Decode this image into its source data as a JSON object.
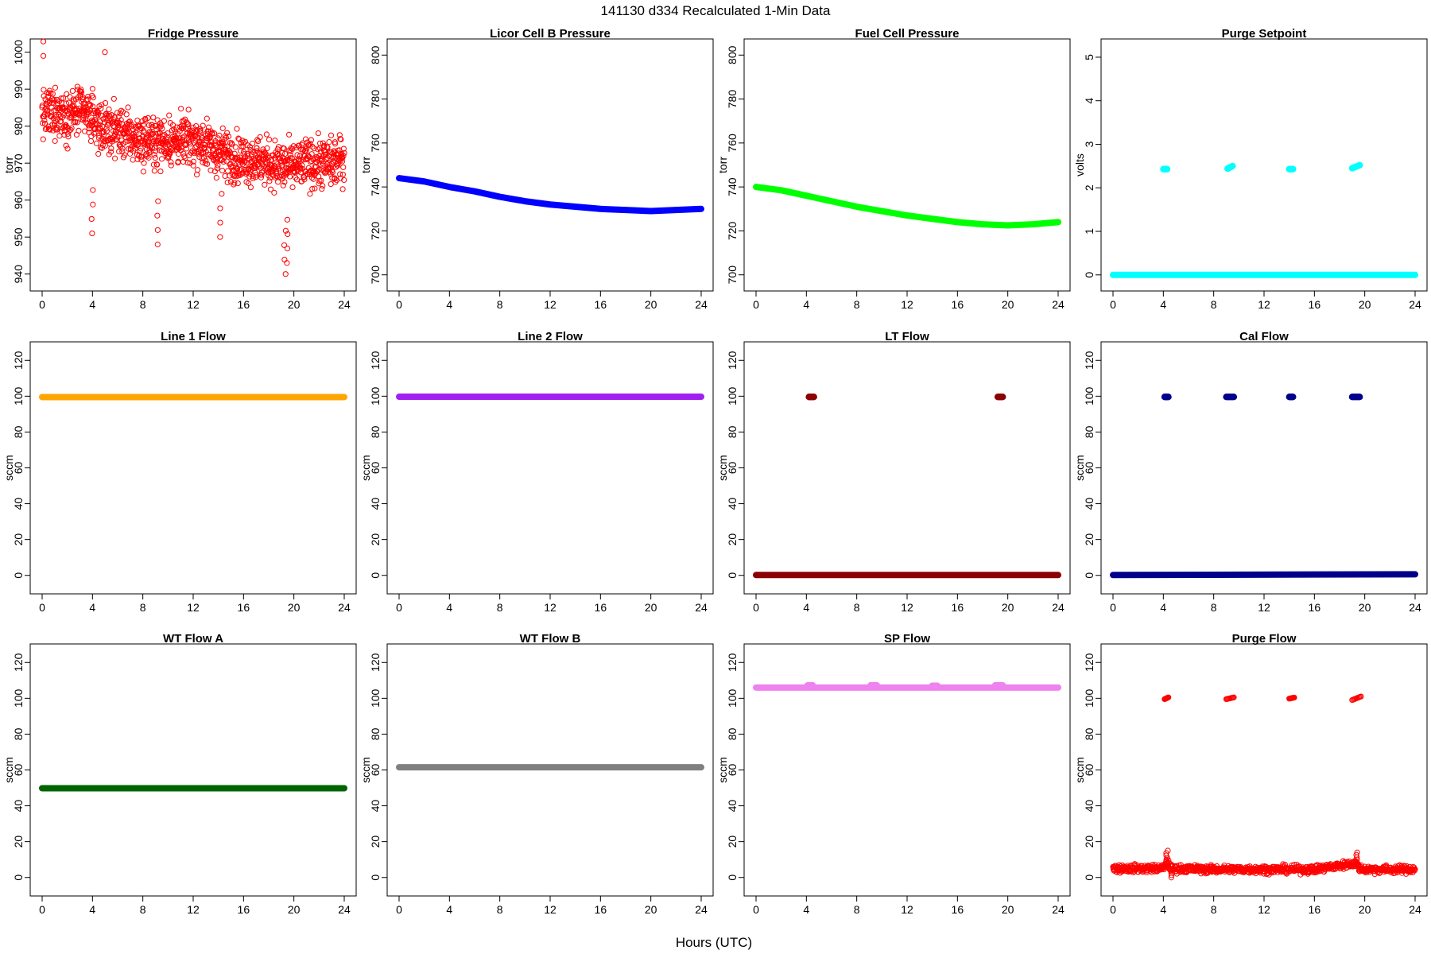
{
  "figure": {
    "title": "141130   d334   Recalculated 1-Min Data",
    "xlabel": "Hours (UTC)",
    "background": "#ffffff"
  },
  "chart_data": [
    {
      "type": "scatter",
      "title": "Fridge Pressure",
      "xlabel": "",
      "ylabel": "torr",
      "xlim": [
        0,
        24
      ],
      "ylim": [
        938,
        1001
      ],
      "xticks": [
        0,
        4,
        8,
        12,
        16,
        20,
        24
      ],
      "yticks": [
        940,
        950,
        960,
        970,
        980,
        990,
        1000
      ],
      "color": "#ff0000",
      "marker": "open-circle",
      "series": [
        {
          "kind": "noisy",
          "x": [
            0,
            1,
            2,
            3,
            4,
            5,
            6,
            7,
            8,
            9,
            10,
            11,
            12,
            13,
            14,
            15,
            16,
            17,
            18,
            19,
            20,
            21,
            22,
            23,
            24
          ],
          "y": [
            983,
            984,
            983,
            984,
            982,
            979,
            979,
            977,
            976,
            976,
            976,
            976,
            976,
            975,
            973,
            972,
            971,
            971,
            970,
            969,
            969,
            970,
            970,
            970,
            971
          ],
          "noise": 6.5,
          "spikes": [
            {
              "x": 4.0,
              "y": 951
            },
            {
              "x": 9.2,
              "y": 948
            },
            {
              "x": 14.2,
              "y": 950
            },
            {
              "x": 19.3,
              "y": 940
            },
            {
              "x": 19.5,
              "y": 943
            },
            {
              "x": 5.0,
              "y": 1000
            },
            {
              "x": 0.1,
              "y": 999
            }
          ]
        }
      ]
    },
    {
      "type": "scatter",
      "title": "Licor Cell B Pressure",
      "xlabel": "",
      "ylabel": "torr",
      "xlim": [
        0,
        24
      ],
      "ylim": [
        697,
        803
      ],
      "xticks": [
        0,
        4,
        8,
        12,
        16,
        20,
        24
      ],
      "yticks": [
        700,
        720,
        740,
        760,
        780,
        800
      ],
      "color": "#0000ff",
      "marker": "filled",
      "series": [
        {
          "kind": "line",
          "x": [
            0,
            2,
            4,
            6,
            8,
            10,
            12,
            14,
            16,
            18,
            20,
            22,
            24
          ],
          "y": [
            744,
            742.5,
            740,
            738,
            735.5,
            733.5,
            732,
            731,
            730,
            729.5,
            729,
            729.5,
            730
          ]
        }
      ]
    },
    {
      "type": "scatter",
      "title": "Fuel Cell Pressure",
      "xlabel": "",
      "ylabel": "torr",
      "xlim": [
        0,
        24
      ],
      "ylim": [
        697,
        803
      ],
      "xticks": [
        0,
        4,
        8,
        12,
        16,
        20,
        24
      ],
      "yticks": [
        700,
        720,
        740,
        760,
        780,
        800
      ],
      "color": "#00ff00",
      "marker": "filled",
      "series": [
        {
          "kind": "line",
          "x": [
            0,
            2,
            4,
            6,
            8,
            10,
            12,
            14,
            16,
            18,
            20,
            22,
            24
          ],
          "y": [
            740,
            738.5,
            736,
            733.5,
            731,
            729,
            727,
            725.5,
            724,
            723,
            722.5,
            723,
            724
          ]
        }
      ]
    },
    {
      "type": "scatter",
      "title": "Purge Setpoint",
      "xlabel": "",
      "ylabel": "volts",
      "xlim": [
        0,
        24
      ],
      "ylim": [
        -0.15,
        5.2
      ],
      "xticks": [
        0,
        4,
        8,
        12,
        16,
        20,
        24
      ],
      "yticks": [
        0,
        1,
        2,
        3,
        4,
        5
      ],
      "color": "#00ffff",
      "marker": "filled",
      "series": [
        {
          "kind": "line",
          "x": [
            0,
            24
          ],
          "y": [
            0,
            0
          ]
        },
        {
          "kind": "cluster",
          "x": [
            4.0,
            4.3
          ],
          "y": [
            2.43,
            2.43
          ]
        },
        {
          "kind": "cluster",
          "x": [
            9.1,
            9.5
          ],
          "y": [
            2.44,
            2.5
          ]
        },
        {
          "kind": "cluster",
          "x": [
            14.0,
            14.3
          ],
          "y": [
            2.43,
            2.43
          ]
        },
        {
          "kind": "cluster",
          "x": [
            19.0,
            19.6
          ],
          "y": [
            2.45,
            2.52
          ]
        }
      ]
    },
    {
      "type": "scatter",
      "title": "Line 1 Flow",
      "xlabel": "",
      "ylabel": "sccm",
      "xlim": [
        0,
        24
      ],
      "ylim": [
        -5,
        125
      ],
      "xticks": [
        0,
        4,
        8,
        12,
        16,
        20,
        24
      ],
      "yticks": [
        0,
        20,
        40,
        60,
        80,
        100,
        120
      ],
      "color": "#ffa500",
      "marker": "filled",
      "series": [
        {
          "kind": "line",
          "x": [
            0,
            24
          ],
          "y": [
            99.5,
            99.5
          ]
        }
      ]
    },
    {
      "type": "scatter",
      "title": "Line 2 Flow",
      "xlabel": "",
      "ylabel": "sccm",
      "xlim": [
        0,
        24
      ],
      "ylim": [
        -5,
        125
      ],
      "xticks": [
        0,
        4,
        8,
        12,
        16,
        20,
        24
      ],
      "yticks": [
        0,
        20,
        40,
        60,
        80,
        100,
        120
      ],
      "color": "#a020f0",
      "marker": "filled",
      "series": [
        {
          "kind": "line",
          "x": [
            0,
            24
          ],
          "y": [
            99.7,
            99.7
          ]
        }
      ]
    },
    {
      "type": "scatter",
      "title": "LT Flow",
      "xlabel": "",
      "ylabel": "sccm",
      "xlim": [
        0,
        24
      ],
      "ylim": [
        -5,
        125
      ],
      "xticks": [
        0,
        4,
        8,
        12,
        16,
        20,
        24
      ],
      "yticks": [
        0,
        20,
        40,
        60,
        80,
        100,
        120
      ],
      "color": "#8b0000",
      "marker": "filled",
      "series": [
        {
          "kind": "line",
          "x": [
            0,
            24
          ],
          "y": [
            0.2,
            0.2
          ]
        },
        {
          "kind": "cluster",
          "x": [
            4.2,
            4.6
          ],
          "y": [
            99.6,
            99.6
          ]
        },
        {
          "kind": "cluster",
          "x": [
            19.2,
            19.6
          ],
          "y": [
            99.6,
            99.6
          ]
        }
      ]
    },
    {
      "type": "scatter",
      "title": "Cal Flow",
      "xlabel": "",
      "ylabel": "sccm",
      "xlim": [
        0,
        24
      ],
      "ylim": [
        -5,
        125
      ],
      "xticks": [
        0,
        4,
        8,
        12,
        16,
        20,
        24
      ],
      "yticks": [
        0,
        20,
        40,
        60,
        80,
        100,
        120
      ],
      "color": "#00008b",
      "marker": "filled",
      "series": [
        {
          "kind": "line",
          "x": [
            0,
            24
          ],
          "y": [
            0.2,
            0.6
          ]
        },
        {
          "kind": "cluster",
          "x": [
            4.1,
            4.4
          ],
          "y": [
            99.6,
            99.6
          ]
        },
        {
          "kind": "cluster",
          "x": [
            9.0,
            9.6
          ],
          "y": [
            99.6,
            99.6
          ]
        },
        {
          "kind": "cluster",
          "x": [
            14.0,
            14.3
          ],
          "y": [
            99.6,
            99.6
          ]
        },
        {
          "kind": "cluster",
          "x": [
            19.0,
            19.6
          ],
          "y": [
            99.6,
            99.6
          ]
        }
      ]
    },
    {
      "type": "scatter",
      "title": "WT Flow A",
      "xlabel": "",
      "ylabel": "sccm",
      "xlim": [
        0,
        24
      ],
      "ylim": [
        -5,
        125
      ],
      "xticks": [
        0,
        4,
        8,
        12,
        16,
        20,
        24
      ],
      "yticks": [
        0,
        20,
        40,
        60,
        80,
        100,
        120
      ],
      "color": "#006400",
      "marker": "filled",
      "series": [
        {
          "kind": "line",
          "x": [
            0,
            24
          ],
          "y": [
            49.8,
            49.8
          ]
        }
      ]
    },
    {
      "type": "scatter",
      "title": "WT Flow B",
      "xlabel": "",
      "ylabel": "sccm",
      "xlim": [
        0,
        24
      ],
      "ylim": [
        -5,
        125
      ],
      "xticks": [
        0,
        4,
        8,
        12,
        16,
        20,
        24
      ],
      "yticks": [
        0,
        20,
        40,
        60,
        80,
        100,
        120
      ],
      "color": "#808080",
      "marker": "filled",
      "series": [
        {
          "kind": "line",
          "x": [
            0,
            24
          ],
          "y": [
            61.5,
            61.5
          ]
        }
      ]
    },
    {
      "type": "scatter",
      "title": "SP Flow",
      "xlabel": "",
      "ylabel": "sccm",
      "xlim": [
        0,
        24
      ],
      "ylim": [
        -5,
        125
      ],
      "xticks": [
        0,
        4,
        8,
        12,
        16,
        20,
        24
      ],
      "yticks": [
        0,
        20,
        40,
        60,
        80,
        100,
        120
      ],
      "color": "#ee82ee",
      "marker": "filled",
      "series": [
        {
          "kind": "line",
          "x": [
            0,
            24
          ],
          "y": [
            106,
            106
          ]
        },
        {
          "kind": "cluster",
          "x": [
            4.1,
            4.5
          ],
          "y": [
            107.2,
            107.2
          ]
        },
        {
          "kind": "cluster",
          "x": [
            9.1,
            9.6
          ],
          "y": [
            107.2,
            107.2
          ]
        },
        {
          "kind": "cluster",
          "x": [
            14.0,
            14.4
          ],
          "y": [
            107.0,
            107.0
          ]
        },
        {
          "kind": "cluster",
          "x": [
            19.0,
            19.6
          ],
          "y": [
            107.2,
            107.2
          ]
        }
      ]
    },
    {
      "type": "scatter",
      "title": "Purge Flow",
      "xlabel": "",
      "ylabel": "sccm",
      "xlim": [
        0,
        24
      ],
      "ylim": [
        -5,
        125
      ],
      "xticks": [
        0,
        4,
        8,
        12,
        16,
        20,
        24
      ],
      "yticks": [
        0,
        20,
        40,
        60,
        80,
        100,
        120
      ],
      "color": "#ff0000",
      "marker": "open-circle",
      "series": [
        {
          "kind": "noisy",
          "x": [
            0,
            4,
            4.3,
            4.6,
            8,
            12,
            16,
            19.3,
            19.6,
            20,
            24
          ],
          "y": [
            5,
            5,
            9,
            5,
            4.5,
            4.5,
            4.5,
            8,
            5,
            4.5,
            4.5
          ],
          "noise": 2.2,
          "spikes": [
            {
              "x": 4.6,
              "y": 0
            },
            {
              "x": 4.3,
              "y": 11
            },
            {
              "x": 19.4,
              "y": 10
            }
          ]
        },
        {
          "kind": "cluster",
          "x": [
            4.1,
            4.4
          ],
          "y": [
            99.5,
            100.5
          ]
        },
        {
          "kind": "cluster",
          "x": [
            9.0,
            9.6
          ],
          "y": [
            99.5,
            100.5
          ]
        },
        {
          "kind": "cluster",
          "x": [
            14.0,
            14.4
          ],
          "y": [
            99.8,
            100.4
          ]
        },
        {
          "kind": "cluster",
          "x": [
            19.0,
            19.7
          ],
          "y": [
            99,
            101
          ]
        }
      ]
    }
  ]
}
